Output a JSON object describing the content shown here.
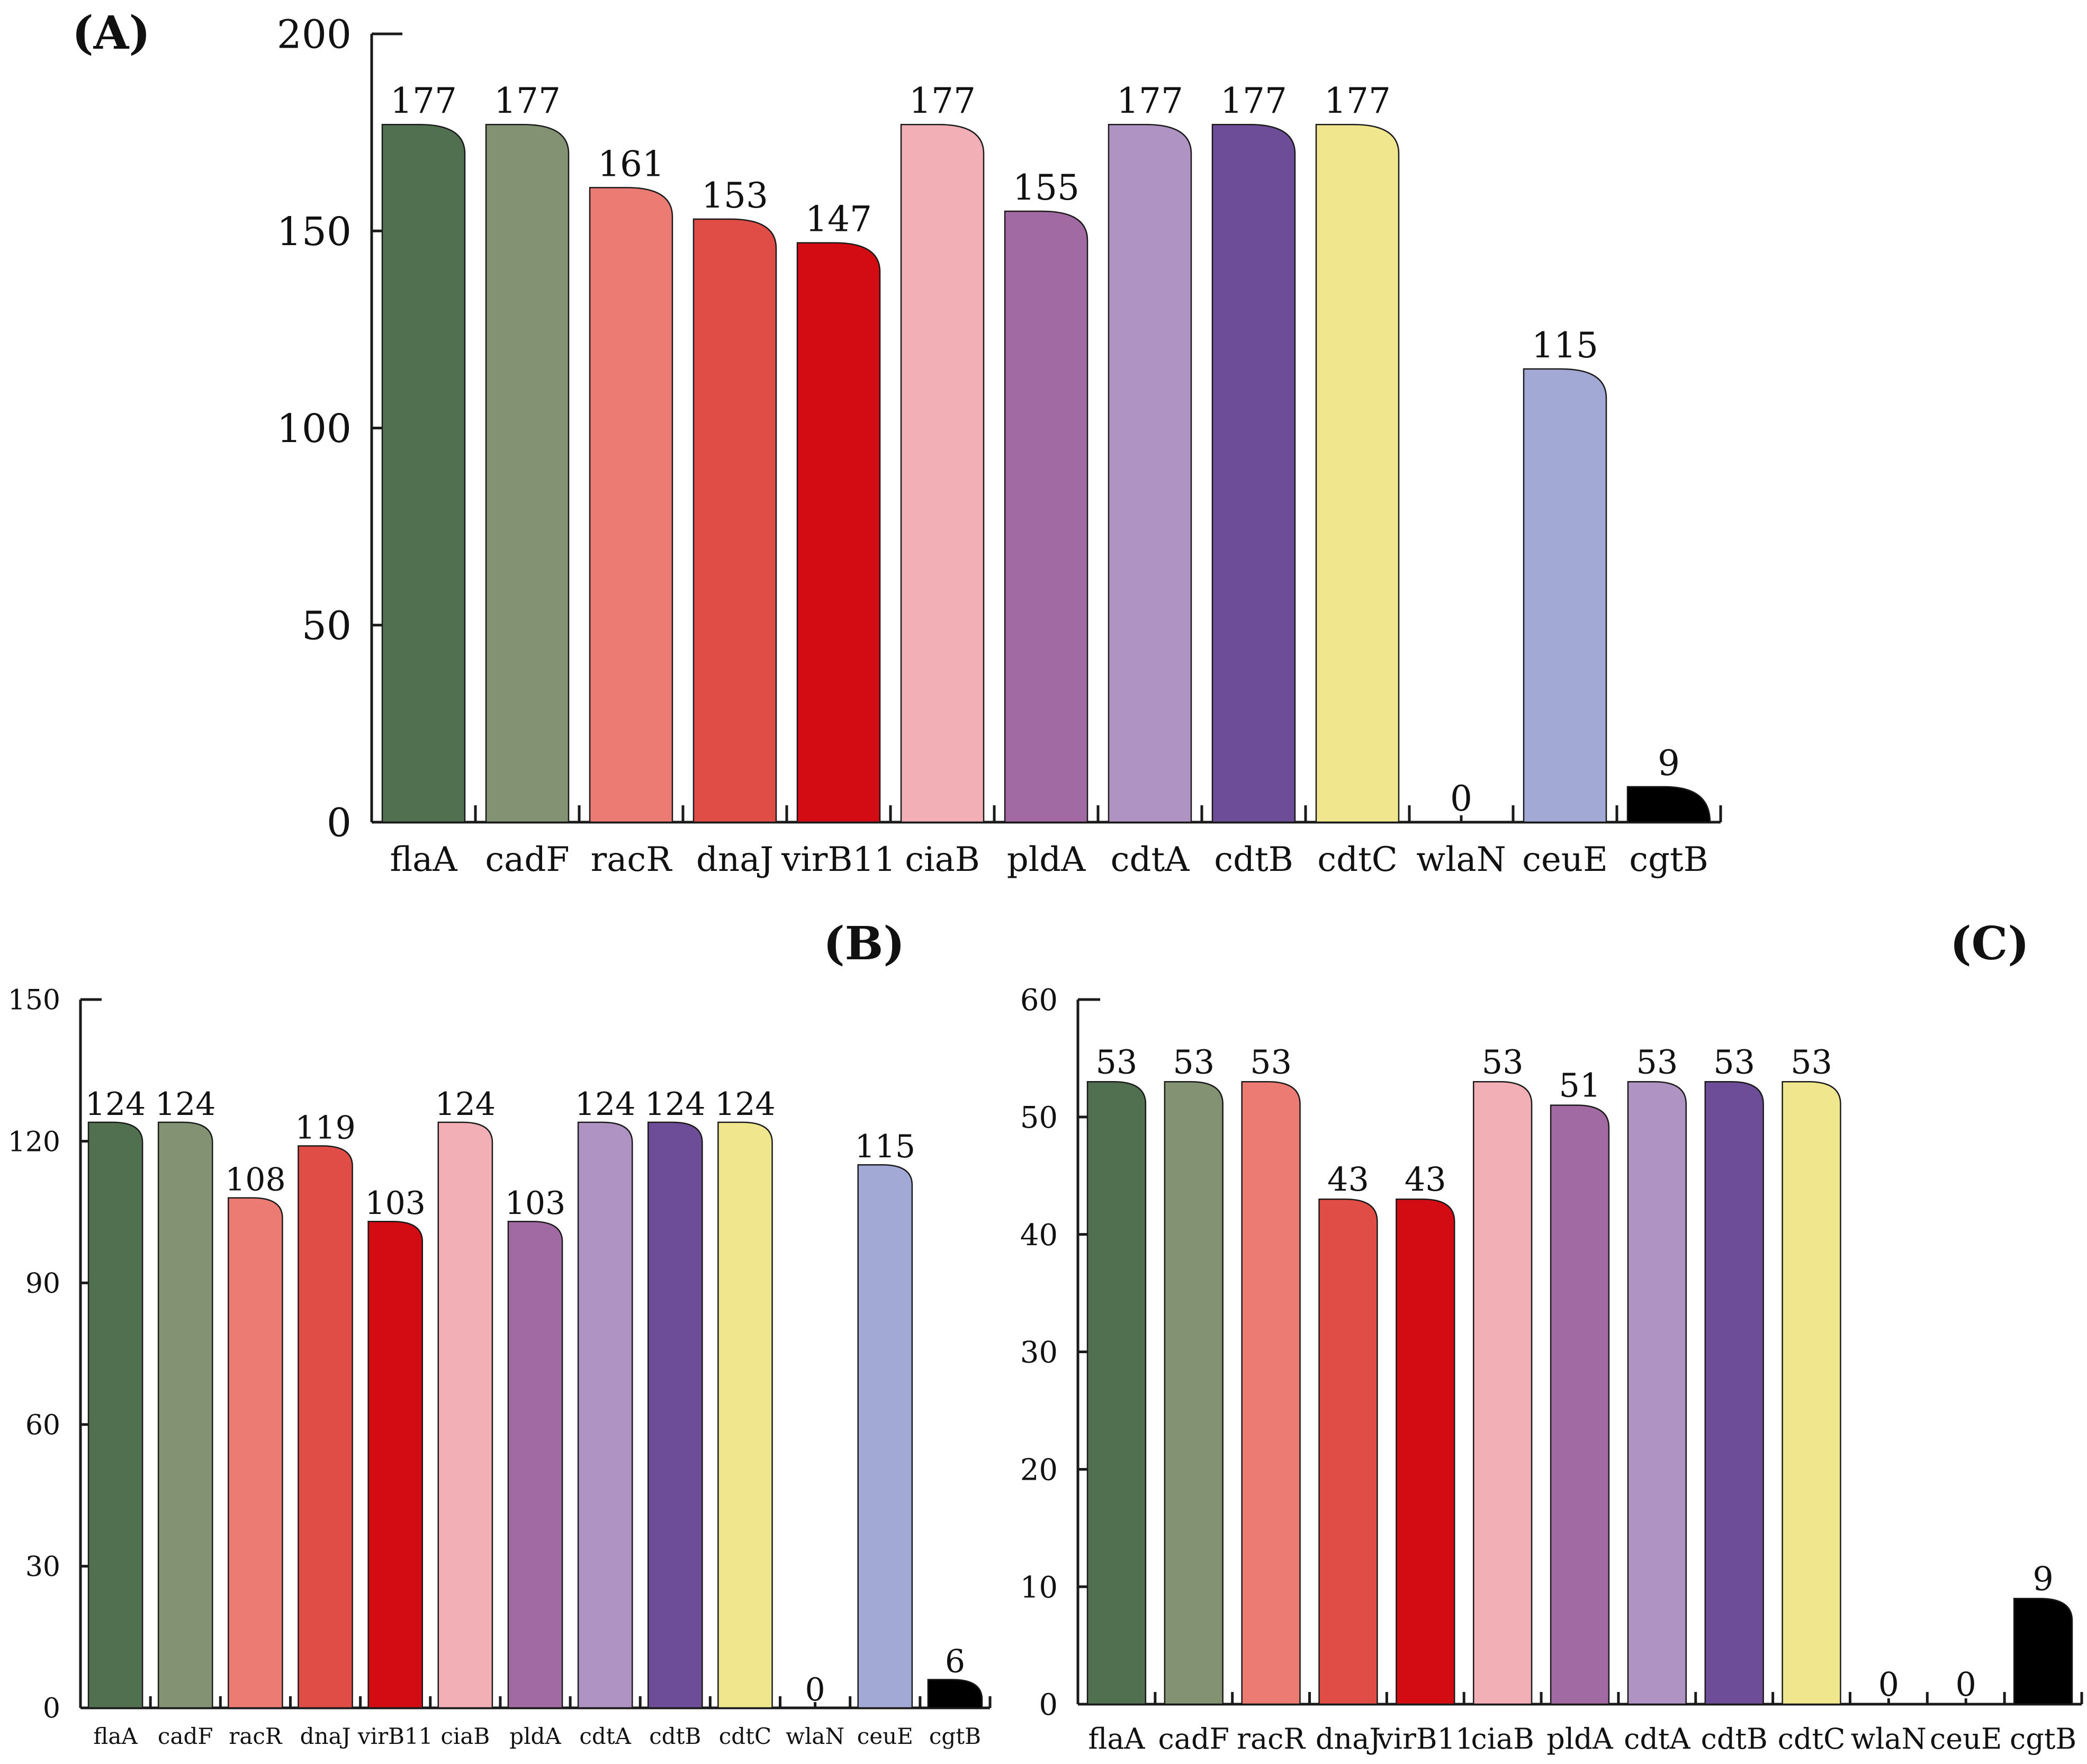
{
  "gene_palette": {
    "flaA": "#507050",
    "cadF": "#829272",
    "racR": "#eb7b73",
    "dnaJ": "#e04c46",
    "virB11": "#d20c12",
    "ciaB": "#f2afb5",
    "pldA": "#a26aa2",
    "cdtA": "#af93c3",
    "cdtB": "#6d4d97",
    "cdtC": "#f0e68e",
    "wlaN": "#ffffff",
    "ceuE": "#a3a9d5",
    "cgtB": "#000000"
  },
  "chart_data": [
    {
      "panel": "(A)",
      "type": "bar",
      "categories": [
        "flaA",
        "cadF",
        "racR",
        "dnaJ",
        "virB11",
        "ciaB",
        "pldA",
        "cdtA",
        "cdtB",
        "cdtC",
        "wlaN",
        "ceuE",
        "cgtB"
      ],
      "values": [
        177,
        177,
        161,
        153,
        147,
        177,
        155,
        177,
        177,
        177,
        0,
        115,
        9
      ],
      "value_labels": [
        "177",
        "177",
        "161",
        "153",
        "147",
        "177",
        "155",
        "177",
        "177",
        "177",
        "0",
        "115",
        "9"
      ],
      "ylim": [
        0,
        200
      ],
      "yticks": [
        0,
        50,
        100,
        150,
        200
      ],
      "ytick_labels": [
        "0",
        "50",
        "100",
        "150",
        "200"
      ],
      "xlabel": "",
      "ylabel": "",
      "grid": false
    },
    {
      "panel": "(B)",
      "type": "bar",
      "categories": [
        "flaA",
        "cadF",
        "racR",
        "dnaJ",
        "virB11",
        "ciaB",
        "pldA",
        "cdtA",
        "cdtB",
        "cdtC",
        "wlaN",
        "ceuE",
        "cgtB"
      ],
      "values": [
        124,
        124,
        108,
        119,
        103,
        124,
        103,
        124,
        124,
        124,
        0,
        115,
        6
      ],
      "value_labels": [
        "124",
        "124",
        "108",
        "119",
        "103",
        "124",
        "103",
        "124",
        "124",
        "124",
        "0",
        "115",
        "6"
      ],
      "ylim": [
        0,
        150
      ],
      "yticks": [
        0,
        30,
        60,
        90,
        120,
        150
      ],
      "ytick_labels": [
        "0",
        "30",
        "60",
        "90",
        "120",
        "150"
      ],
      "xlabel": "",
      "ylabel": "",
      "grid": false
    },
    {
      "panel": "(C)",
      "type": "bar",
      "categories": [
        "flaA",
        "cadF",
        "racR",
        "dnaJ",
        "virB11",
        "ciaB",
        "pldA",
        "cdtA",
        "cdtB",
        "cdtC",
        "wlaN",
        "ceuE",
        "cgtB"
      ],
      "values": [
        53,
        53,
        53,
        43,
        43,
        53,
        51,
        53,
        53,
        53,
        0,
        0,
        9
      ],
      "value_labels": [
        "53",
        "53",
        "53",
        "43",
        "43",
        "53",
        "51",
        "53",
        "53",
        "53",
        "0",
        "0",
        "9"
      ],
      "ylim": [
        0,
        60
      ],
      "yticks": [
        0,
        10,
        20,
        30,
        40,
        50,
        60
      ],
      "ytick_labels": [
        "0",
        "10",
        "20",
        "30",
        "40",
        "50",
        "60"
      ],
      "xlabel": "",
      "ylabel": "",
      "grid": false
    }
  ]
}
